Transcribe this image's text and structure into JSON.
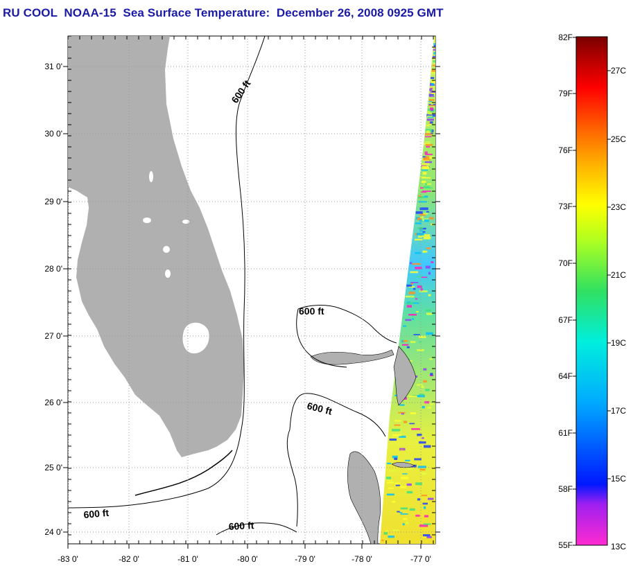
{
  "title": "RU COOL  NOAA-15  Sea Surface Temperature:  December 26, 2008 0925 GMT",
  "latitude_labels": [
    "31 0'",
    "30 0'",
    "29 0'",
    "28 0'",
    "27 0'",
    "26 0'",
    "25 0'",
    "24 0'"
  ],
  "longitude_labels": [
    "-83 0'",
    "-82 0'",
    "-81 0'",
    "-80 0'",
    "-79 0'",
    "-78 0'",
    "-77 0'"
  ],
  "contour_labels": [
    "600 ft",
    "600 ft",
    "600 ft",
    "600 ft",
    "600 ft"
  ],
  "colorbar": {
    "fahrenheit_labels": [
      "82F",
      "79F",
      "76F",
      "73F",
      "70F",
      "67F",
      "64F",
      "61F",
      "58F",
      "55F"
    ],
    "celsius_labels": [
      "27C",
      "25C",
      "23C",
      "21C",
      "19C",
      "17C",
      "15C",
      "13C"
    ],
    "colors": [
      "#ff2ad0",
      "#a020f0",
      "#0018ff",
      "#00aaff",
      "#00eedd",
      "#30e060",
      "#b0ff20",
      "#ffff00",
      "#ffb000",
      "#ff5500",
      "#ff0000",
      "#b00000",
      "#7a0000"
    ]
  },
  "colors": {
    "land": "#b0b0b0",
    "title": "#1a1aa6",
    "contour": "#000000"
  }
}
